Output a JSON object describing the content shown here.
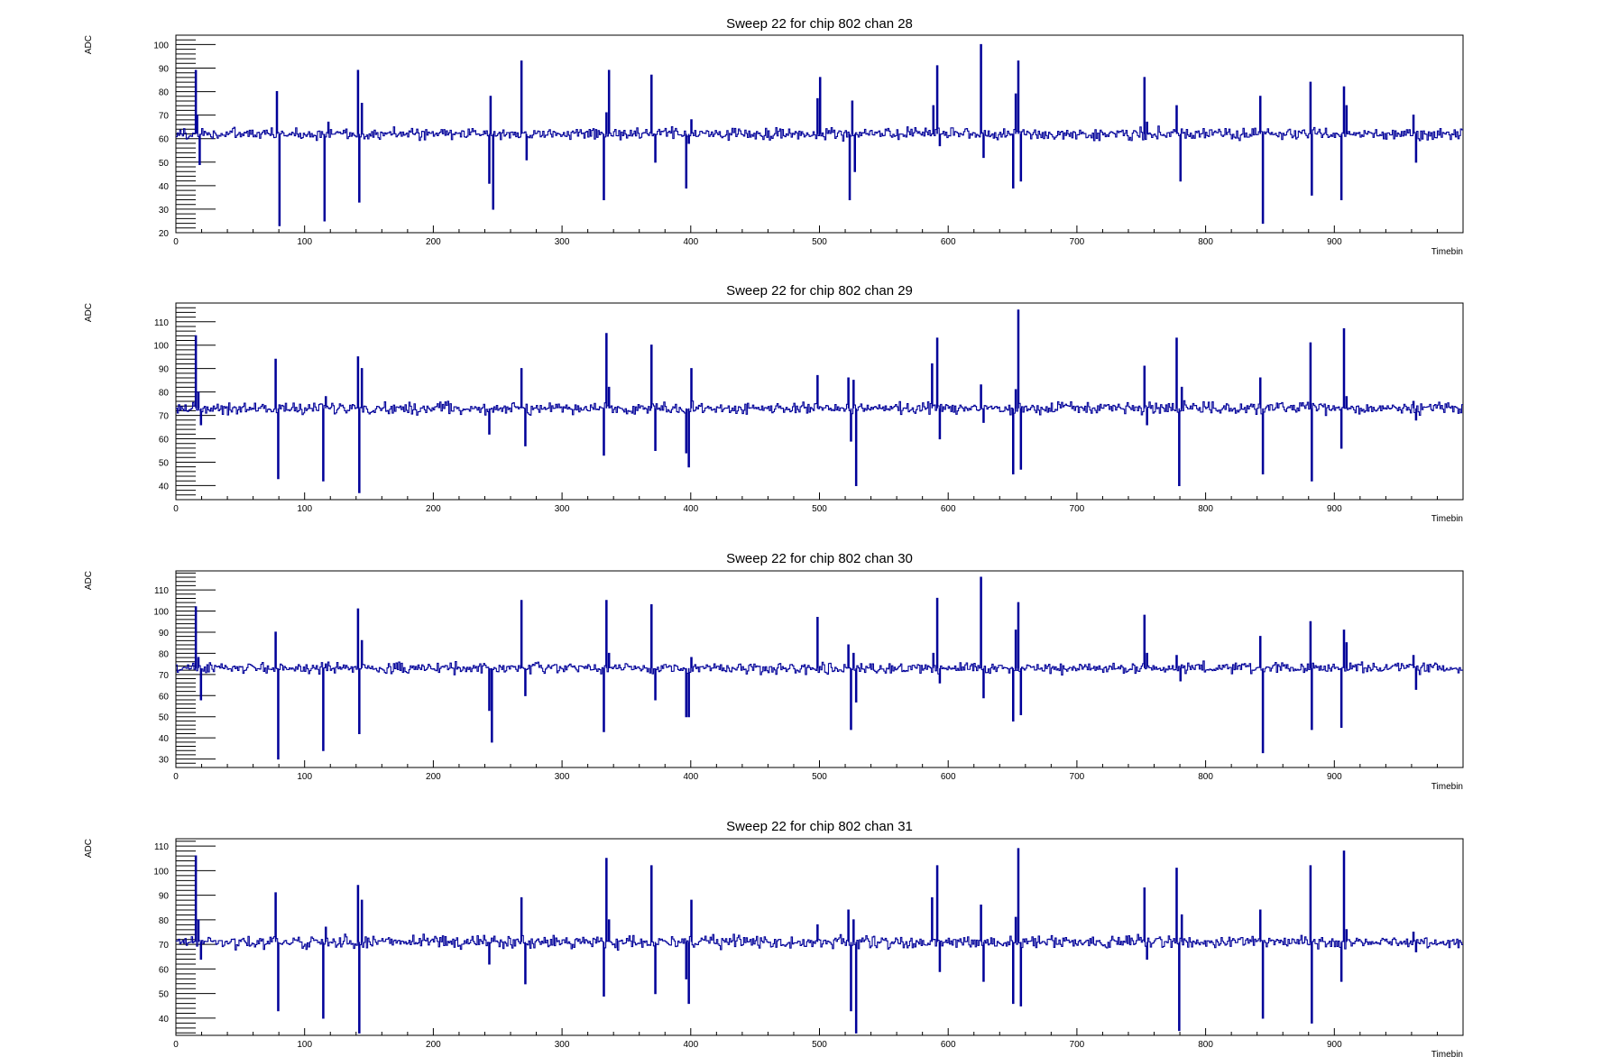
{
  "chart_data": [
    {
      "type": "line",
      "title": "Sweep 22 for chip 802 chan 28",
      "xlabel": "Timebin",
      "ylabel": "ADC",
      "xlim": [
        0,
        1000
      ],
      "ylim": [
        20,
        104
      ],
      "xticks": [
        0,
        100,
        200,
        300,
        400,
        500,
        600,
        700,
        800,
        900
      ],
      "yticks": [
        20,
        30,
        40,
        50,
        60,
        70,
        80,
        90,
        100
      ],
      "baseline": 62,
      "color": "#000099",
      "spikes": [
        {
          "x": 15,
          "y": 89
        },
        {
          "x": 16,
          "y": 70
        },
        {
          "x": 18,
          "y": 49
        },
        {
          "x": 78,
          "y": 80
        },
        {
          "x": 80,
          "y": 23
        },
        {
          "x": 115,
          "y": 25
        },
        {
          "x": 118,
          "y": 67
        },
        {
          "x": 141,
          "y": 89
        },
        {
          "x": 142,
          "y": 33
        },
        {
          "x": 144,
          "y": 75
        },
        {
          "x": 243,
          "y": 41
        },
        {
          "x": 244,
          "y": 78
        },
        {
          "x": 246,
          "y": 30
        },
        {
          "x": 268,
          "y": 93
        },
        {
          "x": 272,
          "y": 51
        },
        {
          "x": 332,
          "y": 34
        },
        {
          "x": 334,
          "y": 71
        },
        {
          "x": 336,
          "y": 89
        },
        {
          "x": 369,
          "y": 87
        },
        {
          "x": 372,
          "y": 50
        },
        {
          "x": 396,
          "y": 39
        },
        {
          "x": 398,
          "y": 58
        },
        {
          "x": 400,
          "y": 68
        },
        {
          "x": 498,
          "y": 77
        },
        {
          "x": 500,
          "y": 86
        },
        {
          "x": 523,
          "y": 34
        },
        {
          "x": 525,
          "y": 76
        },
        {
          "x": 527,
          "y": 46
        },
        {
          "x": 588,
          "y": 74
        },
        {
          "x": 591,
          "y": 91
        },
        {
          "x": 593,
          "y": 57
        },
        {
          "x": 625,
          "y": 100
        },
        {
          "x": 627,
          "y": 52
        },
        {
          "x": 650,
          "y": 39
        },
        {
          "x": 652,
          "y": 79
        },
        {
          "x": 654,
          "y": 93
        },
        {
          "x": 656,
          "y": 42
        },
        {
          "x": 752,
          "y": 86
        },
        {
          "x": 754,
          "y": 67
        },
        {
          "x": 777,
          "y": 74
        },
        {
          "x": 780,
          "y": 42
        },
        {
          "x": 842,
          "y": 78
        },
        {
          "x": 844,
          "y": 24
        },
        {
          "x": 881,
          "y": 84
        },
        {
          "x": 882,
          "y": 36
        },
        {
          "x": 905,
          "y": 34
        },
        {
          "x": 907,
          "y": 82
        },
        {
          "x": 909,
          "y": 74
        },
        {
          "x": 961,
          "y": 70
        },
        {
          "x": 963,
          "y": 50
        }
      ]
    },
    {
      "type": "line",
      "title": "Sweep 22 for chip 802 chan 29",
      "xlabel": "Timebin",
      "ylabel": "ADC",
      "xlim": [
        0,
        1000
      ],
      "ylim": [
        34,
        118
      ],
      "xticks": [
        0,
        100,
        200,
        300,
        400,
        500,
        600,
        700,
        800,
        900
      ],
      "yticks": [
        40,
        50,
        60,
        70,
        80,
        90,
        100,
        110
      ],
      "baseline": 73,
      "color": "#000099",
      "spikes": [
        {
          "x": 15,
          "y": 104
        },
        {
          "x": 17,
          "y": 80
        },
        {
          "x": 19,
          "y": 66
        },
        {
          "x": 77,
          "y": 94
        },
        {
          "x": 79,
          "y": 43
        },
        {
          "x": 114,
          "y": 42
        },
        {
          "x": 116,
          "y": 78
        },
        {
          "x": 141,
          "y": 95
        },
        {
          "x": 142,
          "y": 37
        },
        {
          "x": 144,
          "y": 90
        },
        {
          "x": 243,
          "y": 62
        },
        {
          "x": 268,
          "y": 90
        },
        {
          "x": 271,
          "y": 57
        },
        {
          "x": 332,
          "y": 53
        },
        {
          "x": 334,
          "y": 105
        },
        {
          "x": 336,
          "y": 82
        },
        {
          "x": 369,
          "y": 100
        },
        {
          "x": 372,
          "y": 55
        },
        {
          "x": 396,
          "y": 54
        },
        {
          "x": 398,
          "y": 48
        },
        {
          "x": 400,
          "y": 90
        },
        {
          "x": 498,
          "y": 87
        },
        {
          "x": 522,
          "y": 86
        },
        {
          "x": 524,
          "y": 59
        },
        {
          "x": 526,
          "y": 85
        },
        {
          "x": 528,
          "y": 40
        },
        {
          "x": 587,
          "y": 92
        },
        {
          "x": 591,
          "y": 103
        },
        {
          "x": 593,
          "y": 60
        },
        {
          "x": 625,
          "y": 83
        },
        {
          "x": 627,
          "y": 67
        },
        {
          "x": 650,
          "y": 45
        },
        {
          "x": 652,
          "y": 81
        },
        {
          "x": 654,
          "y": 115
        },
        {
          "x": 656,
          "y": 47
        },
        {
          "x": 752,
          "y": 91
        },
        {
          "x": 754,
          "y": 66
        },
        {
          "x": 777,
          "y": 103
        },
        {
          "x": 779,
          "y": 40
        },
        {
          "x": 781,
          "y": 82
        },
        {
          "x": 842,
          "y": 86
        },
        {
          "x": 844,
          "y": 45
        },
        {
          "x": 881,
          "y": 101
        },
        {
          "x": 882,
          "y": 42
        },
        {
          "x": 905,
          "y": 56
        },
        {
          "x": 907,
          "y": 107
        },
        {
          "x": 909,
          "y": 78
        },
        {
          "x": 961,
          "y": 76
        },
        {
          "x": 963,
          "y": 68
        }
      ]
    },
    {
      "type": "line",
      "title": "Sweep 22 for chip 802 chan 30",
      "xlabel": "Timebin",
      "ylabel": "ADC",
      "xlim": [
        0,
        1000
      ],
      "ylim": [
        26,
        119
      ],
      "xticks": [
        0,
        100,
        200,
        300,
        400,
        500,
        600,
        700,
        800,
        900
      ],
      "yticks": [
        30,
        40,
        50,
        60,
        70,
        80,
        90,
        100,
        110
      ],
      "baseline": 73,
      "color": "#000099",
      "spikes": [
        {
          "x": 15,
          "y": 102
        },
        {
          "x": 17,
          "y": 78
        },
        {
          "x": 19,
          "y": 58
        },
        {
          "x": 77,
          "y": 90
        },
        {
          "x": 79,
          "y": 30
        },
        {
          "x": 114,
          "y": 34
        },
        {
          "x": 116,
          "y": 75
        },
        {
          "x": 141,
          "y": 101
        },
        {
          "x": 142,
          "y": 42
        },
        {
          "x": 144,
          "y": 86
        },
        {
          "x": 243,
          "y": 53
        },
        {
          "x": 245,
          "y": 38
        },
        {
          "x": 268,
          "y": 105
        },
        {
          "x": 271,
          "y": 60
        },
        {
          "x": 332,
          "y": 43
        },
        {
          "x": 334,
          "y": 105
        },
        {
          "x": 336,
          "y": 80
        },
        {
          "x": 369,
          "y": 103
        },
        {
          "x": 372,
          "y": 58
        },
        {
          "x": 396,
          "y": 50
        },
        {
          "x": 398,
          "y": 50
        },
        {
          "x": 400,
          "y": 78
        },
        {
          "x": 498,
          "y": 97
        },
        {
          "x": 522,
          "y": 84
        },
        {
          "x": 524,
          "y": 44
        },
        {
          "x": 526,
          "y": 80
        },
        {
          "x": 528,
          "y": 57
        },
        {
          "x": 588,
          "y": 80
        },
        {
          "x": 591,
          "y": 106
        },
        {
          "x": 593,
          "y": 66
        },
        {
          "x": 625,
          "y": 116
        },
        {
          "x": 627,
          "y": 59
        },
        {
          "x": 650,
          "y": 48
        },
        {
          "x": 652,
          "y": 91
        },
        {
          "x": 654,
          "y": 104
        },
        {
          "x": 656,
          "y": 51
        },
        {
          "x": 752,
          "y": 98
        },
        {
          "x": 754,
          "y": 80
        },
        {
          "x": 777,
          "y": 79
        },
        {
          "x": 780,
          "y": 67
        },
        {
          "x": 842,
          "y": 88
        },
        {
          "x": 844,
          "y": 33
        },
        {
          "x": 881,
          "y": 95
        },
        {
          "x": 882,
          "y": 44
        },
        {
          "x": 905,
          "y": 45
        },
        {
          "x": 907,
          "y": 91
        },
        {
          "x": 909,
          "y": 85
        },
        {
          "x": 961,
          "y": 79
        },
        {
          "x": 963,
          "y": 63
        }
      ]
    },
    {
      "type": "line",
      "title": "Sweep 22 for chip 802 chan 31",
      "xlabel": "Timebin",
      "ylabel": "ADC",
      "xlim": [
        0,
        1000
      ],
      "ylim": [
        33,
        113
      ],
      "xticks": [
        0,
        100,
        200,
        300,
        400,
        500,
        600,
        700,
        800,
        900
      ],
      "yticks": [
        40,
        50,
        60,
        70,
        80,
        90,
        100,
        110
      ],
      "baseline": 71,
      "color": "#000099",
      "spikes": [
        {
          "x": 15,
          "y": 106
        },
        {
          "x": 17,
          "y": 80
        },
        {
          "x": 19,
          "y": 64
        },
        {
          "x": 77,
          "y": 91
        },
        {
          "x": 79,
          "y": 43
        },
        {
          "x": 114,
          "y": 40
        },
        {
          "x": 116,
          "y": 77
        },
        {
          "x": 141,
          "y": 94
        },
        {
          "x": 142,
          "y": 34
        },
        {
          "x": 144,
          "y": 88
        },
        {
          "x": 243,
          "y": 62
        },
        {
          "x": 268,
          "y": 89
        },
        {
          "x": 271,
          "y": 54
        },
        {
          "x": 332,
          "y": 49
        },
        {
          "x": 334,
          "y": 105
        },
        {
          "x": 336,
          "y": 80
        },
        {
          "x": 369,
          "y": 102
        },
        {
          "x": 372,
          "y": 50
        },
        {
          "x": 396,
          "y": 56
        },
        {
          "x": 398,
          "y": 46
        },
        {
          "x": 400,
          "y": 88
        },
        {
          "x": 498,
          "y": 78
        },
        {
          "x": 522,
          "y": 84
        },
        {
          "x": 524,
          "y": 43
        },
        {
          "x": 526,
          "y": 80
        },
        {
          "x": 528,
          "y": 34
        },
        {
          "x": 587,
          "y": 89
        },
        {
          "x": 591,
          "y": 102
        },
        {
          "x": 593,
          "y": 59
        },
        {
          "x": 625,
          "y": 86
        },
        {
          "x": 627,
          "y": 55
        },
        {
          "x": 650,
          "y": 46
        },
        {
          "x": 652,
          "y": 81
        },
        {
          "x": 654,
          "y": 109
        },
        {
          "x": 656,
          "y": 45
        },
        {
          "x": 752,
          "y": 93
        },
        {
          "x": 754,
          "y": 64
        },
        {
          "x": 777,
          "y": 101
        },
        {
          "x": 779,
          "y": 35
        },
        {
          "x": 781,
          "y": 82
        },
        {
          "x": 842,
          "y": 84
        },
        {
          "x": 844,
          "y": 40
        },
        {
          "x": 881,
          "y": 102
        },
        {
          "x": 882,
          "y": 38
        },
        {
          "x": 905,
          "y": 55
        },
        {
          "x": 907,
          "y": 108
        },
        {
          "x": 909,
          "y": 76
        },
        {
          "x": 961,
          "y": 75
        },
        {
          "x": 963,
          "y": 67
        }
      ]
    }
  ]
}
